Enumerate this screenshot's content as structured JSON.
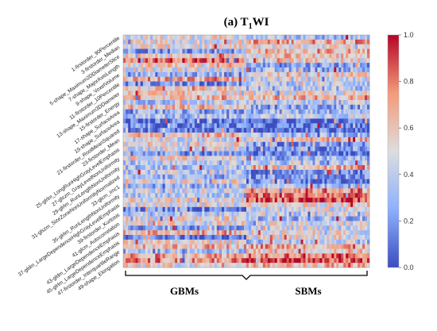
{
  "chart_data": {
    "type": "heatmap",
    "title": "(a) T1WI",
    "title_main": "(a) T",
    "title_subscript": "1",
    "title_tail": "WI",
    "row_labels": [
      "1-firstorder_90Percentile",
      "3-firstorder_Median",
      "5-shape_Maximum2DDiameterSlice",
      "7-shape_MajorAxisLength",
      "9-shape_VoxelVolume",
      "11-firstorder_10Percentile",
      "13-shape_Maximum3DDiameter",
      "15-firstorder_Energy",
      "17-shape_SurfaceArea",
      "19-shape_SurfaceArea",
      "21-firstorder_RootMeanSquared",
      "23-firstorder_Mean",
      "25-glrlm_LongRunHighGrayLevelEmphasis",
      "27-glszm_GrayLevelNonUniformity",
      "29-glrlm_RunLengthNonUniformity",
      "31-glszm_SizeZoneNonUniformityNormalized",
      "33-glcm_Imc1",
      "35-glrlm_RunLengthNonUniformity",
      "37-gldm_LargeDependenceHighGrayLevelEmphasis",
      "39-firstorder_Kurtosis",
      "41-glcm_Autocorrelation",
      "43-gldm_LargeDependenceEmphasis",
      "45-glrlm_LargeDependenceEmphasis",
      "47-firstorder_InterquartileRange",
      "49-shape_Elongation"
    ],
    "groups": [
      {
        "name": "GBMs",
        "columns": 50
      },
      {
        "name": "SBMs",
        "columns": 52
      }
    ],
    "n_rows": 50,
    "colorbar": {
      "min": 0.0,
      "max": 1.0,
      "ticks": [
        "0.0",
        "0.2",
        "0.4",
        "0.6",
        "0.8",
        "1.0"
      ],
      "colormap": "coolwarm"
    },
    "colors": {
      "low": "#3b4cc0",
      "mid": "#dddddd",
      "high": "#b40426"
    },
    "values_note": "cell values generated procedurally to approximate the visible pattern"
  }
}
